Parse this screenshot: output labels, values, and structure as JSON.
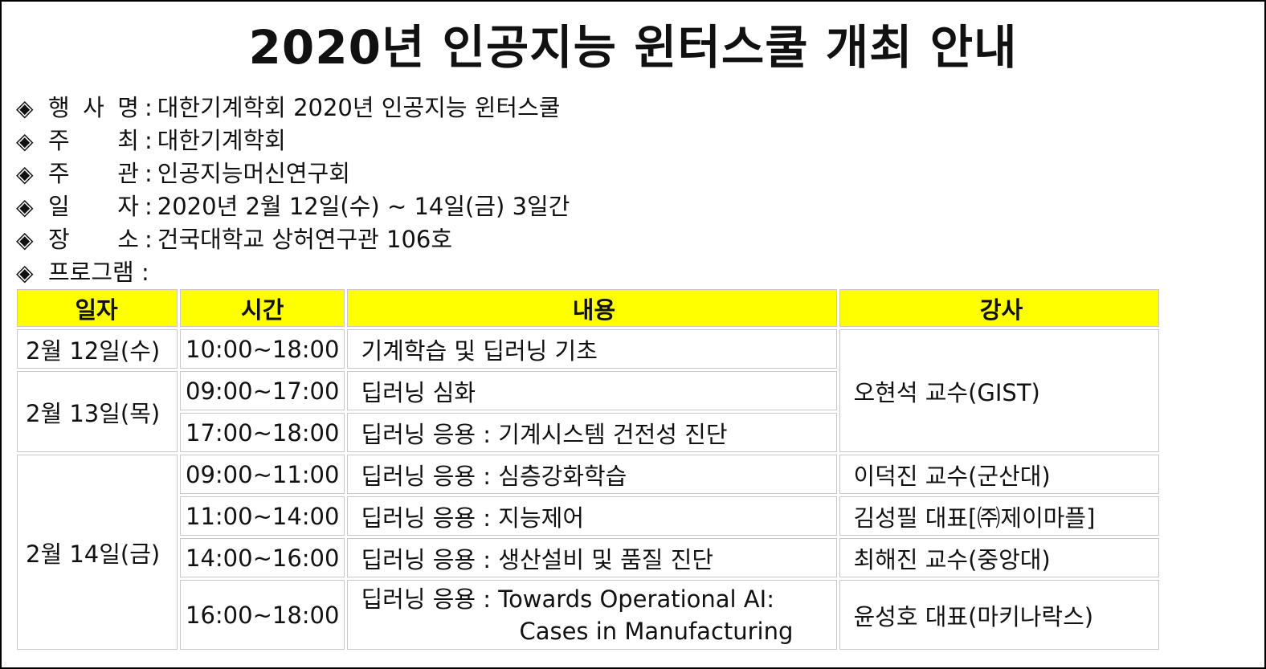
{
  "title": "2020년 인공지능 윈터스쿨 개최 안내",
  "bullet": "◈",
  "colon": ":",
  "info": [
    {
      "label": "행 사 명",
      "value": "대한기계학회 2020년 인공지능 윈터스쿨"
    },
    {
      "label": "주 최",
      "value": "대한기계학회"
    },
    {
      "label": "주 관",
      "value": "인공지능머신연구회"
    },
    {
      "label": "일 자",
      "value": "2020년 2월 12일(수) ~ 14일(금) 3일간"
    },
    {
      "label": "장 소",
      "value": "건국대학교 상허연구관 106호"
    },
    {
      "label": "프로그램 :",
      "value": ""
    }
  ],
  "table": {
    "headers": [
      "일자",
      "시간",
      "내용",
      "강사"
    ],
    "dates": [
      "2월 12일(수)",
      "2월 13일(목)",
      "2월 14일(금)"
    ],
    "rows": [
      {
        "time": "10:00~18:00",
        "content": "기계학습 및 딥러닝 기초"
      },
      {
        "time": "09:00~17:00",
        "content": "딥러닝 심화"
      },
      {
        "time": "17:00~18:00",
        "content": "딥러닝 응용 : 기계시스템 건전성 진단"
      },
      {
        "time": "09:00~11:00",
        "content": "딥러닝 응용 : 심층강화학습"
      },
      {
        "time": "11:00~14:00",
        "content": "딥러닝 응용 : 지능제어"
      },
      {
        "time": "14:00~16:00",
        "content": "딥러닝 응용 : 생산설비 및 품질 진단"
      },
      {
        "time": "16:00~18:00",
        "content": "딥러닝 응용 : Towards Operational AI:",
        "content2": "Cases in Manufacturing"
      }
    ],
    "lecturers": [
      "오현석 교수(GIST)",
      "이덕진 교수(군산대)",
      "김성필 대표[㈜제이마플]",
      "최해진 교수(중앙대)",
      "윤성호 대표(마키나락스)"
    ]
  }
}
